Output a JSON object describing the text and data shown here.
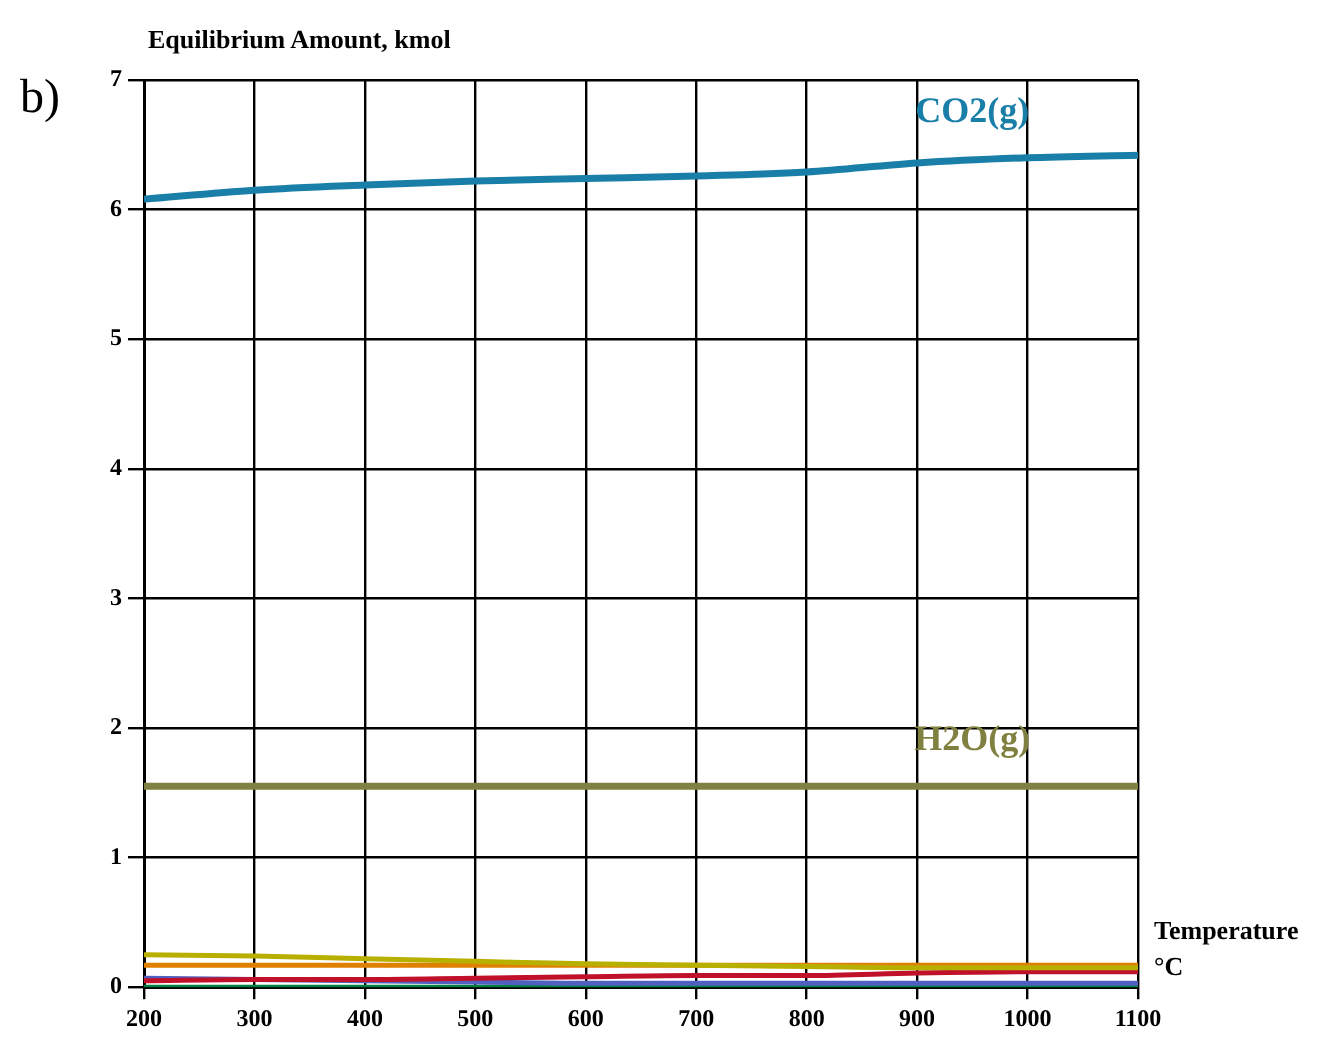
{
  "chart_data": {
    "type": "line",
    "ylabel": "Equilibrium Amount, kmol",
    "xlabel": "Temperature °C",
    "annotations": [
      "b)"
    ],
    "x": [
      200,
      300,
      400,
      500,
      600,
      700,
      800,
      900,
      1000,
      1100
    ],
    "xlim": [
      200,
      1100
    ],
    "xticks": [
      200,
      300,
      400,
      500,
      600,
      700,
      800,
      900,
      1000,
      1100
    ],
    "ylim": [
      0,
      7
    ],
    "yticks": [
      0,
      1,
      2,
      3,
      4,
      5,
      6,
      7
    ],
    "grid": true,
    "legend": false,
    "marker": "none",
    "line_style": "solid",
    "series": [
      {
        "name": "CO2(g)",
        "color": "#1a7fa8",
        "values": [
          6.08,
          6.15,
          6.19,
          6.22,
          6.24,
          6.26,
          6.29,
          6.36,
          6.4,
          6.42
        ]
      },
      {
        "name": "H2O(g)",
        "color": "#808040",
        "values": [
          1.55,
          1.55,
          1.55,
          1.55,
          1.55,
          1.55,
          1.55,
          1.55,
          1.55,
          1.55
        ]
      },
      {
        "color": "#b8b000",
        "values": [
          0.25,
          0.24,
          0.22,
          0.2,
          0.18,
          0.17,
          0.16,
          0.15,
          0.15,
          0.15
        ]
      },
      {
        "color": "#e08000",
        "values": [
          0.17,
          0.17,
          0.17,
          0.17,
          0.17,
          0.17,
          0.17,
          0.17,
          0.17,
          0.17
        ]
      },
      {
        "color": "#c0102a",
        "values": [
          0.05,
          0.06,
          0.06,
          0.07,
          0.08,
          0.09,
          0.09,
          0.11,
          0.12,
          0.12
        ]
      },
      {
        "color": "#5060c0",
        "values": [
          0.07,
          0.06,
          0.05,
          0.04,
          0.03,
          0.03,
          0.03,
          0.03,
          0.03,
          0.03
        ]
      },
      {
        "color": "#008040",
        "values": [
          0,
          0,
          0,
          0,
          0,
          0,
          0,
          0,
          0,
          0
        ]
      }
    ]
  }
}
